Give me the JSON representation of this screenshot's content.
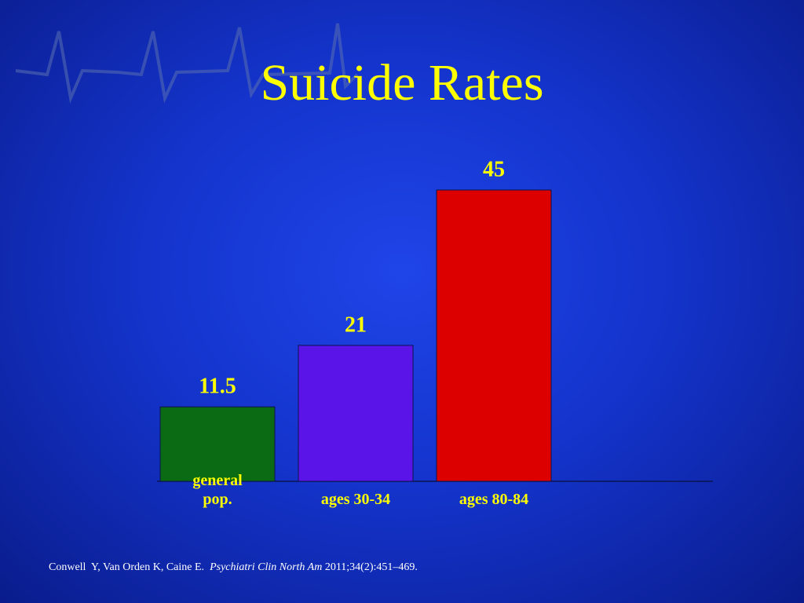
{
  "chart_data": {
    "type": "bar",
    "title": "Suicide Rates",
    "categories": [
      "general pop.",
      "ages 30-34",
      "ages 80-84"
    ],
    "values": [
      11.5,
      21,
      45
    ],
    "colors": [
      "#0b6a14",
      "#5a14e8",
      "#dd0000"
    ]
  },
  "citation": {
    "authors": "Conwell  Y, Van Orden K, Caine E.",
    "journal": "Psychiatri Clin North Am",
    "details": "2011;34(2):451–469."
  }
}
